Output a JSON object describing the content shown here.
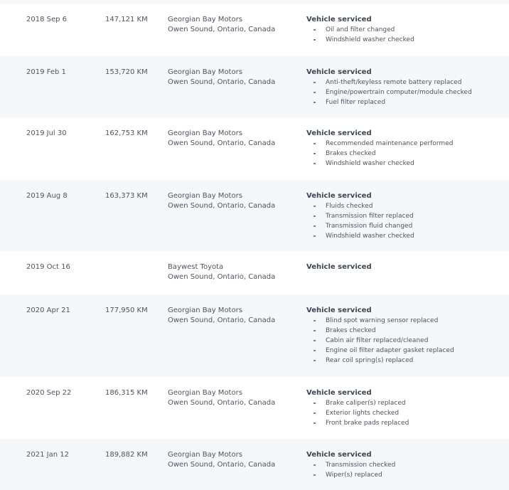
{
  "records": [
    {
      "date": "2018 Sep 6",
      "km": "147,121 KM",
      "shop": "Georgian Bay Motors",
      "city": "Owen Sound, Ontario, Canada",
      "title": "Vehicle serviced",
      "items": [
        "Oil and filter changed",
        "Windshield washer checked"
      ]
    },
    {
      "date": "2019 Feb 1",
      "km": "153,720 KM",
      "shop": "Georgian Bay Motors",
      "city": "Owen Sound, Ontario, Canada",
      "title": "Vehicle serviced",
      "items": [
        "Anti-theft/keyless remote battery replaced",
        "Engine/powertrain computer/module checked",
        "Fuel filter replaced"
      ]
    },
    {
      "date": "2019 Jul 30",
      "km": "162,753 KM",
      "shop": "Georgian Bay Motors",
      "city": "Owen Sound, Ontario, Canada",
      "title": "Vehicle serviced",
      "items": [
        "Recommended maintenance performed",
        "Brakes checked",
        "Windshield washer checked"
      ]
    },
    {
      "date": "2019 Aug 8",
      "km": "163,373 KM",
      "shop": "Georgian Bay Motors",
      "city": "Owen Sound, Ontario, Canada",
      "title": "Vehicle serviced",
      "items": [
        "Fluids checked",
        "Transmission filter replaced",
        "Transmission fluid changed",
        "Windshield washer checked"
      ]
    },
    {
      "date": "2019 Oct 16",
      "km": "",
      "shop": "Baywest Toyota",
      "city": "Owen Sound, Ontario, Canada",
      "title": "Vehicle serviced",
      "items": []
    },
    {
      "date": "2020 Apr 21",
      "km": "177,950 KM",
      "shop": "Georgian Bay Motors",
      "city": "Owen Sound, Ontario, Canada",
      "title": "Vehicle serviced",
      "items": [
        "Blind spot warning sensor replaced",
        "Brakes checked",
        "Cabin air filter replaced/cleaned",
        "Engine oil filter adapter gasket replaced",
        "Rear coil spring(s) replaced"
      ]
    },
    {
      "date": "2020 Sep 22",
      "km": "186,315 KM",
      "shop": "Georgian Bay Motors",
      "city": "Owen Sound, Ontario, Canada",
      "title": "Vehicle serviced",
      "items": [
        "Brake caliper(s) replaced",
        "Exterior lights checked",
        "Front brake pads replaced"
      ]
    },
    {
      "date": "2021 Jan 12",
      "km": "189,882 KM",
      "shop": "Georgian Bay Motors",
      "city": "Owen Sound, Ontario, Canada",
      "title": "Vehicle serviced",
      "items": [
        "Transmission checked",
        "Wiper(s) replaced"
      ]
    }
  ]
}
